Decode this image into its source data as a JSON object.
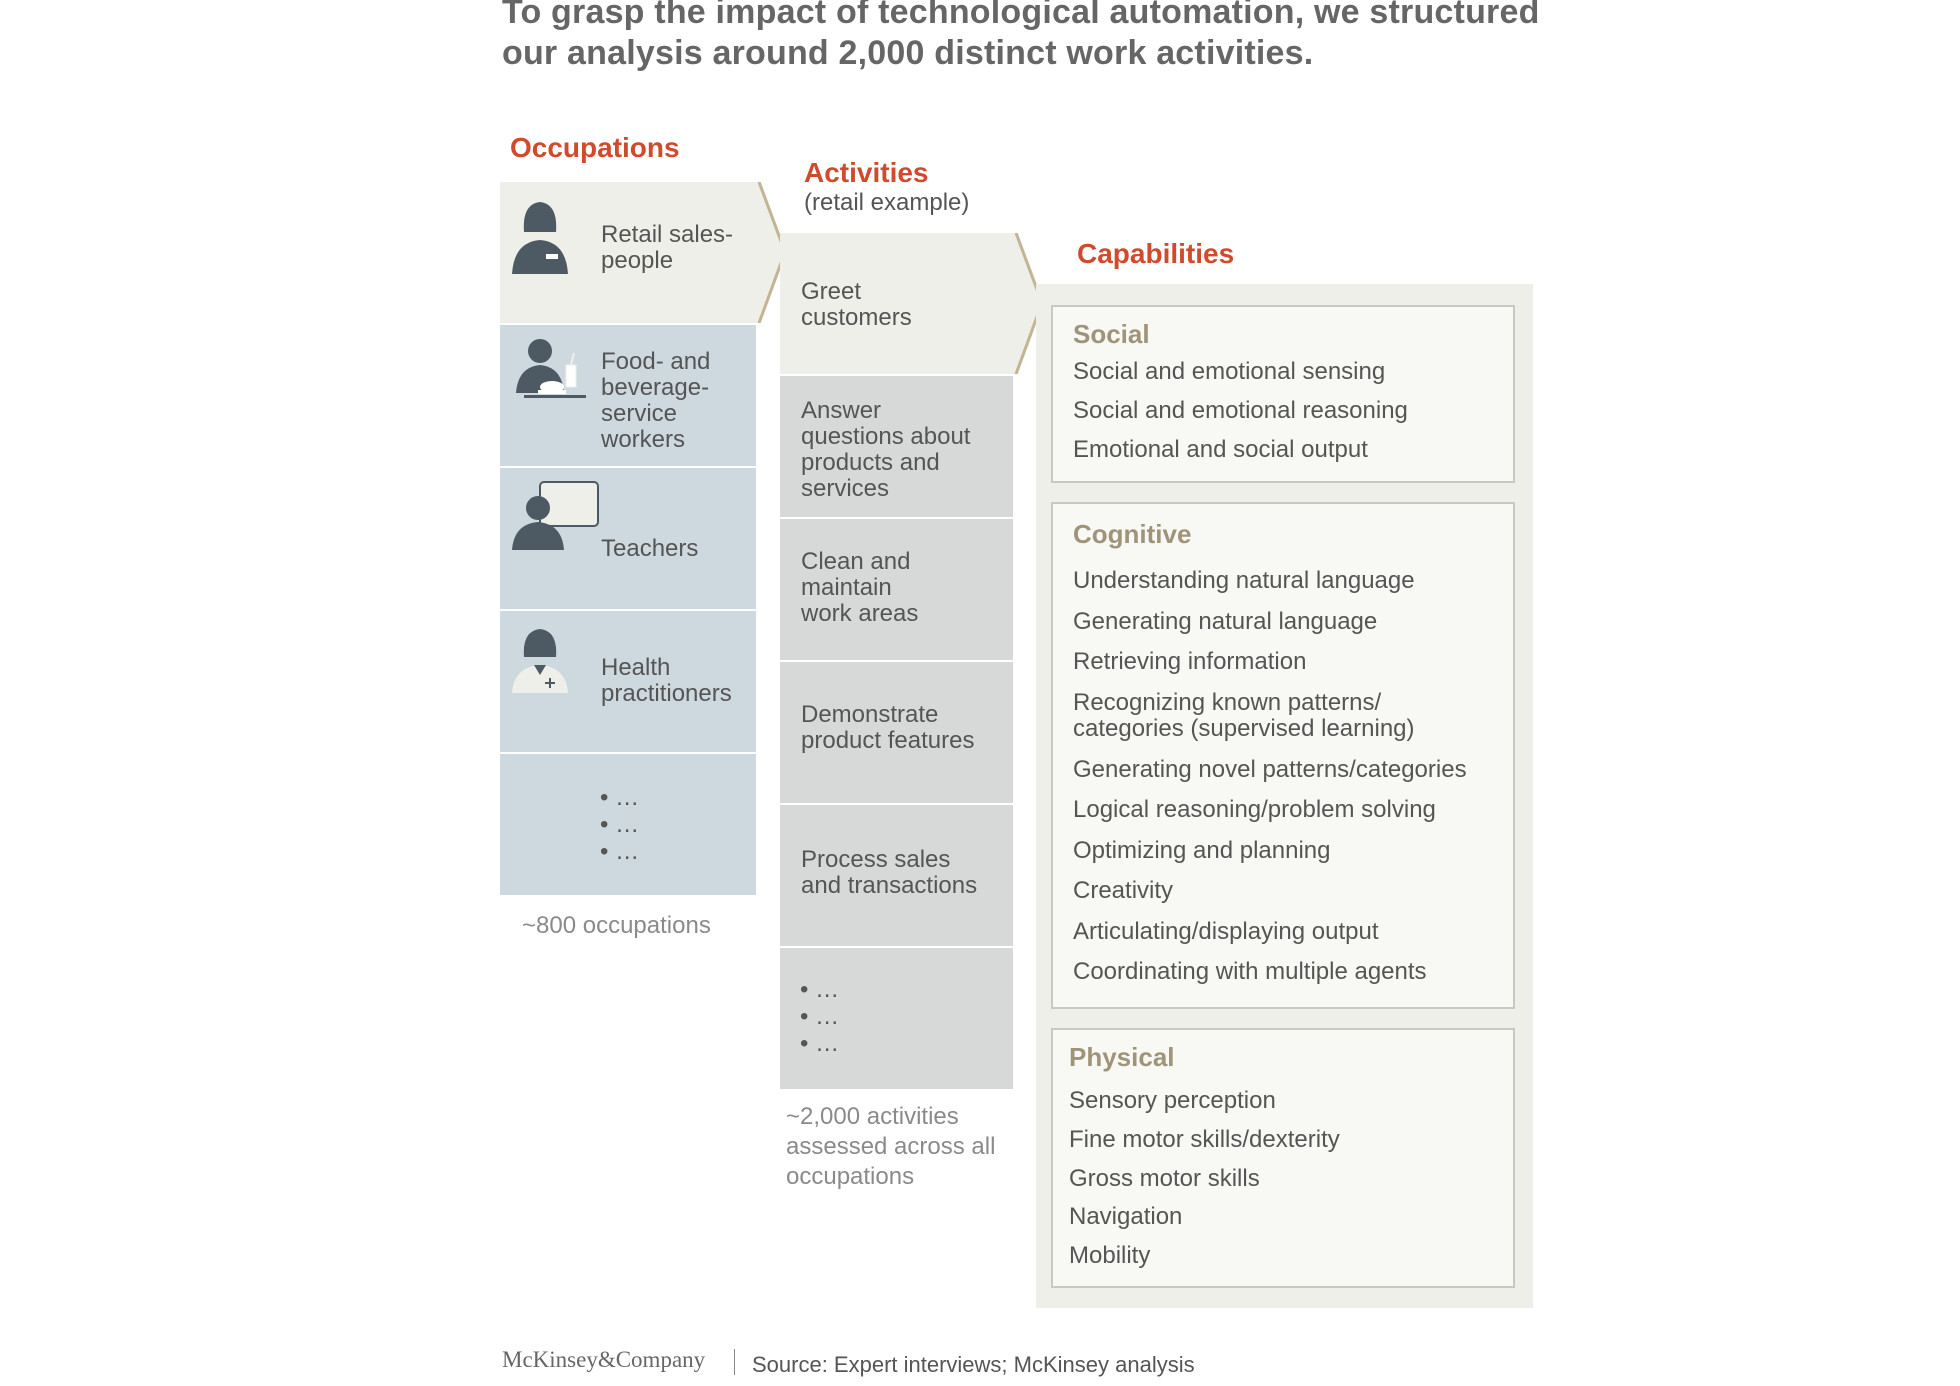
{
  "title": "To grasp the impact of technological automation, we structured our analysis around 2,000 distinct work activities.",
  "occupations": {
    "heading": "Occupations",
    "items": [
      {
        "label": "Retail sales-\npeople",
        "icon": "saleswoman-icon"
      },
      {
        "label": "Food- and\nbeverage-\nservice\nworkers",
        "icon": "food-service-worker-icon"
      },
      {
        "label": "Teachers",
        "icon": "teacher-icon"
      },
      {
        "label": "Health\npractitioners",
        "icon": "health-practitioner-icon"
      }
    ],
    "more": "• …\n• …\n• …",
    "note": "~800 occupations"
  },
  "activities": {
    "heading": "Activities",
    "subheading": "(retail example)",
    "items": [
      "Greet\ncustomers",
      "Answer\nquestions about\nproducts and\nservices",
      "Clean and\nmaintain\nwork areas",
      "Demonstrate\nproduct features",
      "Process sales\nand transactions"
    ],
    "more": "• …\n• …\n• …",
    "note": "~2,000 activities\nassessed across all\noccupations"
  },
  "capabilities": {
    "heading": "Capabilities",
    "groups": [
      {
        "title": "Social",
        "items": [
          "Social and emotional sensing",
          "Social and emotional reasoning",
          "Emotional and social output"
        ]
      },
      {
        "title": "Cognitive",
        "items": [
          "Understanding natural language",
          "Generating natural language",
          "Retrieving information",
          "Recognizing known patterns/\ncategories (supervised learning)",
          "Generating novel patterns/categories",
          "Logical reasoning/problem solving",
          "Optimizing and planning",
          "Creativity",
          "Articulating/displaying output",
          "Coordinating with multiple agents"
        ]
      },
      {
        "title": "Physical",
        "items": [
          "Sensory perception",
          "Fine motor skills/dexterity",
          "Gross motor skills",
          "Navigation",
          "Mobility"
        ]
      }
    ]
  },
  "footer": {
    "logo": "McKinsey&Company",
    "source": "Source: Expert interviews; McKinsey analysis"
  },
  "colors": {
    "accent": "#d04a2c",
    "group_title": "#a09478",
    "occupation_fill": "#cdd8df",
    "activity_fill": "#d7d8d8",
    "highlight_fill": "#efefe9",
    "chevron": "#c4b494"
  }
}
